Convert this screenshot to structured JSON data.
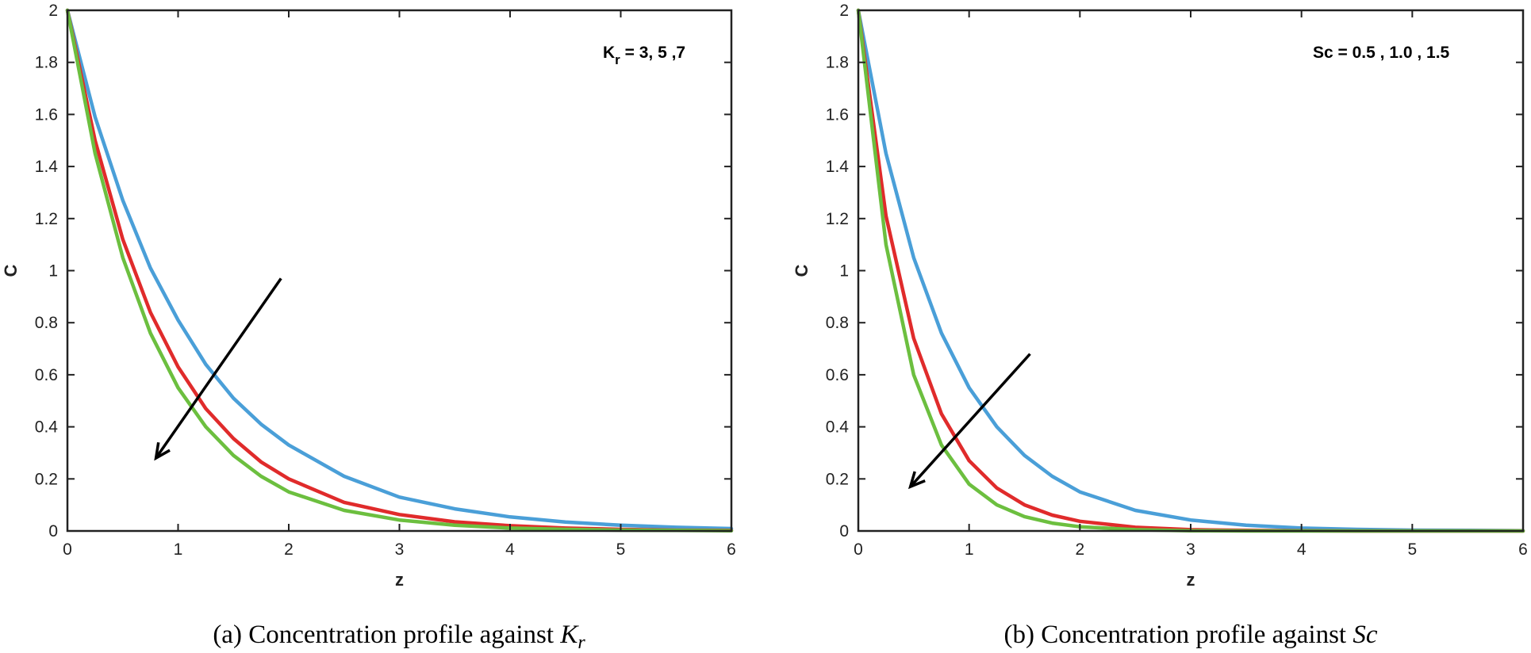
{
  "chart_data": [
    {
      "type": "line",
      "panel": "a",
      "caption_prefix": "(a)  Concentration profile against ",
      "caption_symbol": "K",
      "caption_sub": "r",
      "xlabel": "z",
      "ylabel": "C",
      "xlim": [
        0,
        6
      ],
      "ylim": [
        0,
        2
      ],
      "xticks": [
        "0",
        "1",
        "2",
        "3",
        "4",
        "5",
        "6"
      ],
      "yticks": [
        "0",
        "0.2",
        "0.4",
        "0.6",
        "0.8",
        "1",
        "1.2",
        "1.4",
        "1.6",
        "1.8",
        "2"
      ],
      "annotation_main": "K",
      "annotation_sub": "r",
      "annotation_rest": " = 3, 5 ,7",
      "arrow": {
        "from": [
          1.93,
          0.97
        ],
        "to": [
          0.8,
          0.28
        ]
      },
      "series": [
        {
          "name": "Kr = 3",
          "color": "#4a9fd8",
          "x": [
            0,
            0.25,
            0.5,
            0.75,
            1,
            1.25,
            1.5,
            1.75,
            2,
            2.5,
            3,
            3.5,
            4,
            4.5,
            5,
            5.5,
            6
          ],
          "y": [
            2,
            1.59,
            1.27,
            1.01,
            0.81,
            0.64,
            0.51,
            0.41,
            0.33,
            0.21,
            0.13,
            0.085,
            0.054,
            0.034,
            0.022,
            0.014,
            0.009
          ]
        },
        {
          "name": "Kr = 5",
          "color": "#e02b2b",
          "x": [
            0,
            0.25,
            0.5,
            0.75,
            1,
            1.25,
            1.5,
            1.75,
            2,
            2.5,
            3,
            3.5,
            4,
            4.5,
            5,
            5.5,
            6
          ],
          "y": [
            2,
            1.5,
            1.12,
            0.84,
            0.63,
            0.47,
            0.355,
            0.265,
            0.2,
            0.11,
            0.063,
            0.035,
            0.02,
            0.011,
            0.006,
            0.003,
            0.002
          ]
        },
        {
          "name": "Kr = 7",
          "color": "#6cbf3f",
          "x": [
            0,
            0.25,
            0.5,
            0.75,
            1,
            1.25,
            1.5,
            1.75,
            2,
            2.5,
            3,
            3.5,
            4,
            4.5,
            5,
            5.5,
            6
          ],
          "y": [
            2,
            1.45,
            1.05,
            0.76,
            0.55,
            0.4,
            0.29,
            0.21,
            0.15,
            0.079,
            0.042,
            0.022,
            0.011,
            0.006,
            0.003,
            0.002,
            0.001
          ]
        }
      ]
    },
    {
      "type": "line",
      "panel": "b",
      "caption_prefix": "(b)  Concentration profile against ",
      "caption_symbol": "Sc",
      "caption_sub": "",
      "xlabel": "z",
      "ylabel": "C",
      "xlim": [
        0,
        6
      ],
      "ylim": [
        0,
        2
      ],
      "xticks": [
        "0",
        "1",
        "2",
        "3",
        "4",
        "5",
        "6"
      ],
      "yticks": [
        "0",
        "0.2",
        "0.4",
        "0.6",
        "0.8",
        "1",
        "1.2",
        "1.4",
        "1.6",
        "1.8",
        "2"
      ],
      "annotation_main": "Sc = 0.5 , 1.0 , 1.5",
      "annotation_sub": "",
      "annotation_rest": "",
      "arrow": {
        "from": [
          1.55,
          0.68
        ],
        "to": [
          0.47,
          0.17
        ]
      },
      "series": [
        {
          "name": "Sc = 0.5",
          "color": "#4a9fd8",
          "x": [
            0,
            0.25,
            0.5,
            0.75,
            1,
            1.25,
            1.5,
            1.75,
            2,
            2.5,
            3,
            3.5,
            4,
            4.5,
            5,
            5.5,
            6
          ],
          "y": [
            2,
            1.45,
            1.05,
            0.76,
            0.55,
            0.4,
            0.29,
            0.21,
            0.15,
            0.079,
            0.042,
            0.022,
            0.011,
            0.006,
            0.003,
            0.002,
            0.001
          ]
        },
        {
          "name": "Sc = 1.0",
          "color": "#e02b2b",
          "x": [
            0,
            0.25,
            0.5,
            0.75,
            1,
            1.25,
            1.5,
            1.75,
            2,
            2.5,
            3,
            3.5,
            4,
            4.5,
            5,
            5.5,
            6
          ],
          "y": [
            2,
            1.21,
            0.74,
            0.45,
            0.27,
            0.165,
            0.1,
            0.061,
            0.037,
            0.014,
            0.005,
            0.002,
            0.001,
            0,
            0,
            0,
            0
          ]
        },
        {
          "name": "Sc = 1.5",
          "color": "#6cbf3f",
          "x": [
            0,
            0.25,
            0.5,
            0.75,
            1,
            1.25,
            1.5,
            1.75,
            2,
            2.5,
            3,
            3.5,
            4,
            4.5,
            5,
            5.5,
            6
          ],
          "y": [
            2,
            1.1,
            0.6,
            0.33,
            0.18,
            0.1,
            0.055,
            0.03,
            0.016,
            0.005,
            0.001,
            0,
            0,
            0,
            0,
            0,
            0
          ]
        }
      ]
    }
  ]
}
